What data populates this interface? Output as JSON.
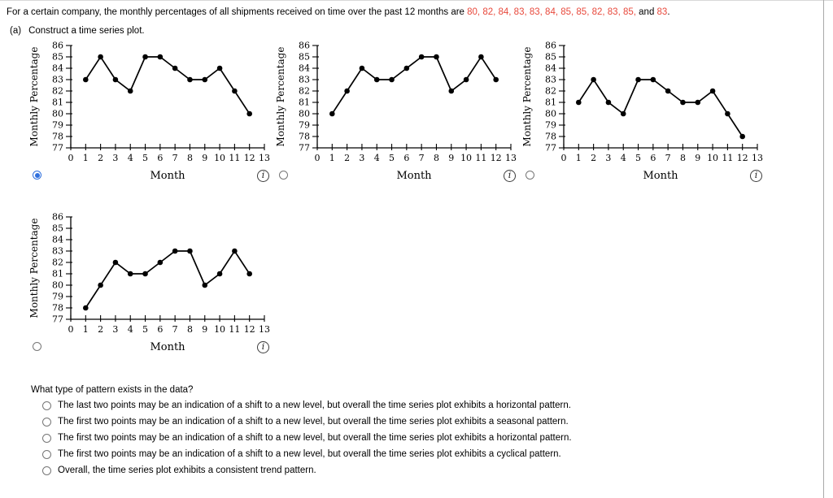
{
  "colors": {
    "highlight_red": "#e8493c",
    "radio_selected_blue": "#2f6fdd",
    "chart_ink": "#000000"
  },
  "question": {
    "prefix": "For a certain company, the monthly percentages of all shipments received on time over the past 12 months are ",
    "values_red": "80, 82, 84, 83, 83, 84, 85, 85, 82, 83, 85,",
    "connector": " and ",
    "last_value_red": "83",
    "suffix": "."
  },
  "part_a": {
    "label": "(a)",
    "text": "Construct a time series plot."
  },
  "icons": {
    "info": "i"
  },
  "chart_data": [
    {
      "type": "line",
      "xlabel": "Month",
      "ylabel": "Monthly Percentage",
      "x": [
        1,
        2,
        3,
        4,
        5,
        6,
        7,
        8,
        9,
        10,
        11,
        12
      ],
      "values": [
        83,
        85,
        83,
        82,
        85,
        85,
        84,
        83,
        83,
        84,
        82,
        80
      ],
      "xlim": [
        0,
        13
      ],
      "ylim": [
        77,
        86
      ],
      "x_ticks": [
        0,
        1,
        2,
        3,
        4,
        5,
        6,
        7,
        8,
        9,
        10,
        11,
        12,
        13
      ],
      "y_ticks": [
        77,
        78,
        79,
        80,
        81,
        82,
        83,
        84,
        85,
        86
      ],
      "row": 1,
      "radio_selected": true
    },
    {
      "type": "line",
      "xlabel": "Month",
      "ylabel": "Monthly Percentage",
      "x": [
        1,
        2,
        3,
        4,
        5,
        6,
        7,
        8,
        9,
        10,
        11,
        12
      ],
      "values": [
        80,
        82,
        84,
        83,
        83,
        84,
        85,
        85,
        82,
        83,
        85,
        83
      ],
      "xlim": [
        0,
        13
      ],
      "ylim": [
        77,
        86
      ],
      "x_ticks": [
        0,
        1,
        2,
        3,
        4,
        5,
        6,
        7,
        8,
        9,
        10,
        11,
        12,
        13
      ],
      "y_ticks": [
        77,
        78,
        79,
        80,
        81,
        82,
        83,
        84,
        85,
        86
      ],
      "row": 1,
      "radio_selected": false
    },
    {
      "type": "line",
      "xlabel": "Month",
      "ylabel": "Monthly Percentage",
      "x": [
        1,
        2,
        3,
        4,
        5,
        6,
        7,
        8,
        9,
        10,
        11,
        12
      ],
      "values": [
        81,
        83,
        81,
        80,
        83,
        83,
        82,
        81,
        81,
        82,
        80,
        78
      ],
      "xlim": [
        0,
        13
      ],
      "ylim": [
        77,
        86
      ],
      "x_ticks": [
        0,
        1,
        2,
        3,
        4,
        5,
        6,
        7,
        8,
        9,
        10,
        11,
        12,
        13
      ],
      "y_ticks": [
        77,
        78,
        79,
        80,
        81,
        82,
        83,
        84,
        85,
        86
      ],
      "row": 1,
      "radio_selected": false
    },
    {
      "type": "line",
      "xlabel": "Month",
      "ylabel": "Monthly Percentage",
      "x": [
        1,
        2,
        3,
        4,
        5,
        6,
        7,
        8,
        9,
        10,
        11,
        12
      ],
      "values": [
        78,
        80,
        82,
        81,
        81,
        82,
        83,
        83,
        80,
        81,
        83,
        81
      ],
      "xlim": [
        0,
        13
      ],
      "ylim": [
        77,
        86
      ],
      "x_ticks": [
        0,
        1,
        2,
        3,
        4,
        5,
        6,
        7,
        8,
        9,
        10,
        11,
        12,
        13
      ],
      "y_ticks": [
        77,
        78,
        79,
        80,
        81,
        82,
        83,
        84,
        85,
        86
      ],
      "row": 2,
      "radio_selected": false
    }
  ],
  "pattern_question": {
    "prompt": "What type of pattern exists in the data?",
    "options": [
      {
        "label": "The last two points may be an indication of a shift to a new level, but overall the time series plot exhibits a horizontal pattern.",
        "selected": false
      },
      {
        "label": "The first two points may be an indication of a shift to a new level, but overall the time series plot exhibits a seasonal pattern.",
        "selected": false
      },
      {
        "label": "The first two points may be an indication of a shift to a new level, but overall the time series plot exhibits a horizontal pattern.",
        "selected": false
      },
      {
        "label": "The first two points may be an indication of a shift to a new level, but overall the time series plot exhibits a cyclical pattern.",
        "selected": false
      },
      {
        "label": "Overall, the time series plot exhibits a consistent trend pattern.",
        "selected": false
      }
    ]
  }
}
